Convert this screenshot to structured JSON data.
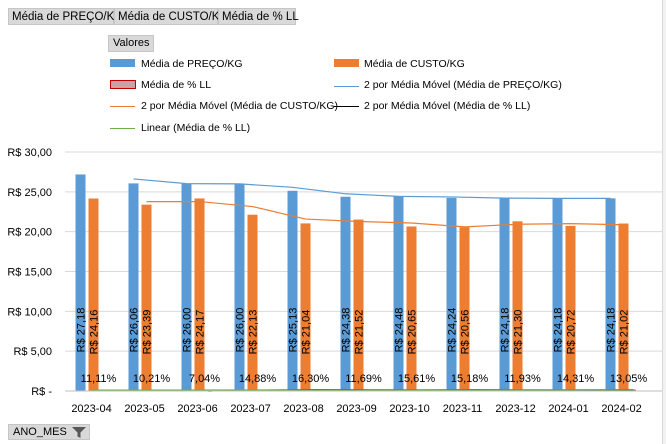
{
  "pivot_fields": {
    "field1": "Média de PREÇO/KG",
    "field2": "Média de CUSTO/KG",
    "field3": "Média de % LL"
  },
  "values_button": "Valores",
  "axis_field_button": "ANO_MES",
  "colors": {
    "preco": "#5b9bd5",
    "custo": "#ed7d31",
    "ll": "#c9a3a3",
    "ma_preco": "#5b9bd5",
    "ma_custo": "#ed7d31",
    "ma_ll": "#000000",
    "linear_ll": "#70ad47"
  },
  "legend": {
    "preco": "Média de PREÇO/KG",
    "custo": "Média de CUSTO/KG",
    "ll": "Média de % LL",
    "ma_preco": "2 por Média Móvel (Média de PREÇO/KG)",
    "ma_custo": "2 por Média Móvel (Média de CUSTO/KG)",
    "ma_ll": "2 por Média Móvel (Média de % LL)",
    "linear": "Linear (Média de % LL)"
  },
  "chart_data": {
    "type": "bar",
    "categories": [
      "2023-04",
      "2023-05",
      "2023-06",
      "2023-07",
      "2023-08",
      "2023-09",
      "2023-10",
      "2023-11",
      "2023-12",
      "2024-01",
      "2024-02"
    ],
    "series": [
      {
        "name": "Média de PREÇO/KG",
        "values": [
          27.18,
          26.06,
          26.0,
          26.0,
          25.13,
          24.38,
          24.48,
          24.24,
          24.18,
          24.18,
          24.18
        ],
        "labels": [
          "R$ 27,18",
          "R$ 26,06",
          "R$ 26,00",
          "R$ 26,00",
          "R$ 25,13",
          "R$ 24,38",
          "R$ 24,48",
          "R$ 24,24",
          "R$ 24,18",
          "R$ 24,18",
          "R$ 24,18"
        ]
      },
      {
        "name": "Média de CUSTO/KG",
        "values": [
          24.16,
          23.39,
          24.17,
          22.13,
          21.04,
          21.52,
          20.65,
          20.56,
          21.3,
          20.72,
          21.02
        ],
        "labels": [
          "R$ 24,16",
          "R$ 23,39",
          "R$ 24,17",
          "R$ 22,13",
          "R$ 21,04",
          "R$ 21,52",
          "R$ 20,65",
          "R$ 20,56",
          "R$ 21,30",
          "R$ 20,72",
          "R$ 21,02"
        ]
      },
      {
        "name": "Média de % LL",
        "values": [
          0.1111,
          0.1021,
          0.0704,
          0.1488,
          0.163,
          0.1169,
          0.1561,
          0.1518,
          0.1193,
          0.1431,
          0.1305
        ],
        "labels": [
          "11,11%",
          "10,21%",
          "7,04%",
          "14,88%",
          "16,30%",
          "11,69%",
          "15,61%",
          "15,18%",
          "11,93%",
          "14,31%",
          "13,05%"
        ]
      }
    ],
    "ylim": [
      0,
      30
    ],
    "yticks": [
      0,
      5,
      10,
      15,
      20,
      25,
      30
    ],
    "ytick_labels": [
      "R$ -",
      "R$ 5,00",
      "R$ 10,00",
      "R$ 15,00",
      "R$ 20,00",
      "R$ 25,00",
      "R$ 30,00"
    ],
    "gridlines": true,
    "legend_position": "top"
  }
}
